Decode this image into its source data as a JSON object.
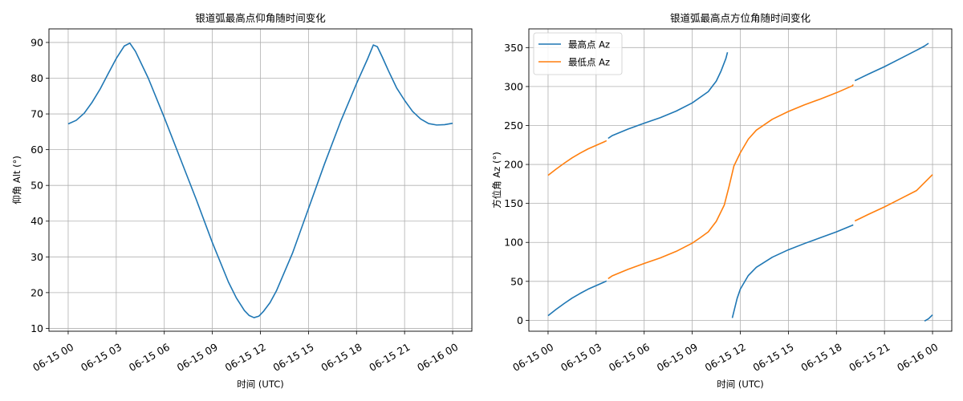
{
  "chart_data": [
    {
      "type": "line",
      "title": "银道弧最高点仰角随时间变化",
      "xlabel": "时间 (UTC)",
      "ylabel": "仰角 Alt (°)",
      "x_tick_labels": [
        "06-15 00",
        "06-15 03",
        "06-15 06",
        "06-15 09",
        "06-15 12",
        "06-15 15",
        "06-15 18",
        "06-15 21",
        "06-16 00"
      ],
      "xlim_hours": [
        -1.2,
        25.2
      ],
      "ylim": [
        9.2,
        93.8
      ],
      "y_ticks": [
        10,
        20,
        30,
        40,
        50,
        60,
        70,
        80,
        90
      ],
      "grid": true,
      "series": [
        {
          "color": "#1f77b4",
          "points": [
            [
              0,
              67.2
            ],
            [
              0.5,
              68.2
            ],
            [
              1,
              70.2
            ],
            [
              1.5,
              73.3
            ],
            [
              2,
              77.0
            ],
            [
              2.5,
              81.3
            ],
            [
              3,
              85.5
            ],
            [
              3.5,
              89.0
            ],
            [
              3.85,
              89.8
            ],
            [
              4.2,
              87.5
            ],
            [
              5,
              80.0
            ],
            [
              6,
              69.0
            ],
            [
              7,
              57.5
            ],
            [
              8,
              46.0
            ],
            [
              9,
              34.0
            ],
            [
              10,
              23.0
            ],
            [
              10.5,
              18.5
            ],
            [
              11,
              15.0
            ],
            [
              11.3,
              13.6
            ],
            [
              11.6,
              13.0
            ],
            [
              11.9,
              13.4
            ],
            [
              12.2,
              14.8
            ],
            [
              12.6,
              17.2
            ],
            [
              13,
              20.5
            ],
            [
              14,
              31.0
            ],
            [
              15,
              43.5
            ],
            [
              16,
              56.0
            ],
            [
              17,
              67.8
            ],
            [
              18,
              78.5
            ],
            [
              18.7,
              85.5
            ],
            [
              19.05,
              89.3
            ],
            [
              19.3,
              88.8
            ],
            [
              19.6,
              86.0
            ],
            [
              20,
              82.0
            ],
            [
              20.5,
              77.3
            ],
            [
              21,
              73.8
            ],
            [
              21.5,
              70.7
            ],
            [
              22,
              68.6
            ],
            [
              22.5,
              67.3
            ],
            [
              23,
              66.9
            ],
            [
              23.5,
              67.0
            ],
            [
              24,
              67.4
            ]
          ]
        }
      ]
    },
    {
      "type": "line",
      "title": "银道弧最高点方位角随时间变化",
      "xlabel": "时间 (UTC)",
      "ylabel": "方位角 Az (°)",
      "x_tick_labels": [
        "06-15 00",
        "06-15 03",
        "06-15 06",
        "06-15 09",
        "06-15 12",
        "06-15 15",
        "06-15 18",
        "06-15 21",
        "06-16 00"
      ],
      "xlim_hours": [
        -1.2,
        25.2
      ],
      "ylim": [
        -14,
        374
      ],
      "y_ticks": [
        0,
        50,
        100,
        150,
        200,
        250,
        300,
        350
      ],
      "grid": true,
      "legend": "upper-left",
      "series": [
        {
          "name": "最高点 Az",
          "color": "#1f77b4",
          "segments": [
            [
              [
                0,
                6
              ],
              [
                0.5,
                14
              ],
              [
                1,
                21.5
              ],
              [
                1.5,
                28.5
              ],
              [
                2,
                34.5
              ],
              [
                2.5,
                40
              ],
              [
                3,
                44.5
              ],
              [
                3.5,
                49
              ],
              [
                3.65,
                50.5
              ]
            ],
            [
              [
                3.75,
                233.5
              ],
              [
                4,
                237
              ],
              [
                5,
                245.5
              ],
              [
                6,
                253
              ],
              [
                7,
                260
              ],
              [
                8,
                268.5
              ],
              [
                9,
                279
              ],
              [
                10,
                293.5
              ],
              [
                10.5,
                307
              ],
              [
                10.8,
                320
              ],
              [
                11.1,
                336
              ],
              [
                11.2,
                344
              ]
            ],
            [
              [
                11.5,
                3
              ],
              [
                11.8,
                28
              ],
              [
                12,
                40
              ],
              [
                12.5,
                57.5
              ],
              [
                13,
                68
              ],
              [
                14,
                81
              ],
              [
                15,
                90.5
              ],
              [
                16,
                98.5
              ],
              [
                17,
                106
              ],
              [
                18,
                113.5
              ],
              [
                19,
                122
              ],
              [
                19.05,
                122.5
              ]
            ],
            [
              [
                19.15,
                307.5
              ],
              [
                19.5,
                311
              ],
              [
                20,
                316
              ],
              [
                21,
                325.5
              ],
              [
                22,
                336
              ],
              [
                23,
                346.5
              ],
              [
                23.5,
                352
              ],
              [
                23.75,
                355.5
              ]
            ],
            [
              [
                23.5,
                -1
              ],
              [
                23.75,
                2
              ],
              [
                24,
                7
              ]
            ]
          ]
        },
        {
          "name": "最低点 Az",
          "color": "#ff7f0e",
          "segments": [
            [
              [
                0,
                186
              ],
              [
                0.5,
                194
              ],
              [
                1,
                201.5
              ],
              [
                1.5,
                208.5
              ],
              [
                2,
                214.5
              ],
              [
                2.5,
                220
              ],
              [
                3,
                224.5
              ],
              [
                3.5,
                229
              ],
              [
                3.65,
                230.5
              ]
            ],
            [
              [
                3.75,
                53.5
              ],
              [
                4,
                57
              ],
              [
                5,
                65.5
              ],
              [
                6,
                73
              ],
              [
                7,
                80
              ],
              [
                8,
                88.5
              ],
              [
                9,
                99
              ],
              [
                9.5,
                106
              ],
              [
                10,
                113.5
              ],
              [
                10.5,
                127
              ],
              [
                11,
                148
              ],
              [
                11.3,
                172
              ],
              [
                11.6,
                198
              ],
              [
                12,
                215
              ],
              [
                12.5,
                232.5
              ],
              [
                13,
                244
              ],
              [
                14,
                258
              ],
              [
                15,
                268
              ],
              [
                16,
                276.5
              ],
              [
                17,
                284
              ],
              [
                18,
                292
              ],
              [
                19,
                301
              ],
              [
                19.05,
                302.5
              ]
            ],
            [
              [
                19.15,
                127.5
              ],
              [
                19.5,
                131
              ],
              [
                20,
                136
              ],
              [
                21,
                145.5
              ],
              [
                22,
                156
              ],
              [
                23,
                166.5
              ],
              [
                24,
                187
              ]
            ]
          ]
        }
      ]
    }
  ]
}
